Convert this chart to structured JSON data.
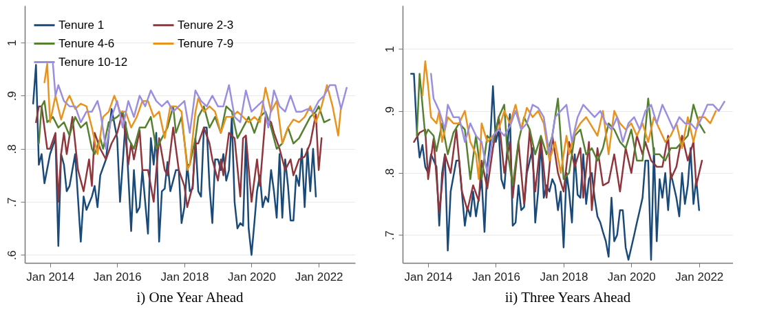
{
  "chart_data": [
    {
      "type": "line",
      "title": "i) One Year Ahead",
      "xlim": [
        "2013-04",
        "2023-02"
      ],
      "xticks": [
        {
          "value": "2014-01",
          "label": "Jan 2014"
        },
        {
          "value": "2016-01",
          "label": "Jan 2016"
        },
        {
          "value": "2018-01",
          "label": "Jan 2018"
        },
        {
          "value": "2020-01",
          "label": "Jan 2020"
        },
        {
          "value": "2022-01",
          "label": "Jan 2022"
        }
      ],
      "ylim": [
        0.585,
        1.07
      ],
      "yticks": [
        {
          "value": 0.6,
          "label": ".6"
        },
        {
          "value": 0.7,
          "label": ".7"
        },
        {
          "value": 0.8,
          "label": ".8"
        },
        {
          "value": 0.9,
          "label": ".9"
        },
        1
      ],
      "grid": "y",
      "legend": "top left",
      "line_style": "solid",
      "marker": "none",
      "series": [
        {
          "name": "Tenure 1",
          "color": "#1a4a7a",
          "x": [
            "2013-07",
            "2013-08",
            "2013-09",
            "2013-10",
            "2013-11",
            "2014-01",
            "2014-03",
            "2014-04",
            "2014-05",
            "2014-06",
            "2014-07",
            "2014-08",
            "2014-10",
            "2014-12",
            "2015-01",
            "2015-02",
            "2015-04",
            "2015-05",
            "2015-06",
            "2015-07",
            "2015-09",
            "2015-11",
            "2016-01",
            "2016-02",
            "2016-04",
            "2016-06",
            "2016-07",
            "2016-08",
            "2016-09",
            "2016-10",
            "2016-12",
            "2017-01",
            "2017-02",
            "2017-03",
            "2017-04",
            "2017-05",
            "2017-06",
            "2017-07",
            "2017-08",
            "2017-09",
            "2017-10",
            "2017-11",
            "2017-12",
            "2018-01",
            "2018-02",
            "2018-03",
            "2018-04",
            "2018-05",
            "2018-06",
            "2018-07",
            "2018-08",
            "2018-09",
            "2018-10",
            "2018-11",
            "2018-12",
            "2019-01",
            "2019-02",
            "2019-03",
            "2019-04",
            "2019-05",
            "2019-06",
            "2019-07",
            "2019-08",
            "2019-09",
            "2019-10",
            "2019-11",
            "2019-12",
            "2020-01",
            "2020-02",
            "2020-03",
            "2020-04",
            "2020-05",
            "2020-06",
            "2020-07",
            "2020-08",
            "2020-09",
            "2020-10",
            "2020-11",
            "2020-12",
            "2021-01",
            "2021-02",
            "2021-03",
            "2021-04",
            "2021-05",
            "2021-06",
            "2021-07",
            "2021-08",
            "2021-09",
            "2021-10",
            "2021-11",
            "2021-12"
          ],
          "values": [
            0.885,
            0.958,
            0.77,
            0.79,
            0.735,
            0.79,
            0.82,
            0.617,
            0.79,
            0.77,
            0.72,
            0.73,
            0.79,
            0.625,
            0.71,
            0.685,
            0.71,
            0.73,
            0.69,
            0.75,
            0.78,
            0.875,
            0.82,
            0.7,
            0.85,
            0.645,
            0.76,
            0.68,
            0.69,
            0.76,
            0.64,
            0.82,
            0.77,
            0.83,
            0.625,
            0.72,
            0.725,
            0.775,
            0.72,
            0.74,
            0.76,
            0.76,
            0.66,
            0.69,
            0.77,
            0.72,
            0.725,
            0.82,
            0.72,
            0.71,
            0.84,
            0.84,
            0.73,
            0.66,
            0.78,
            0.78,
            0.76,
            0.79,
            0.74,
            0.76,
            0.86,
            0.7,
            0.65,
            0.66,
            0.655,
            0.82,
            0.65,
            0.6,
            0.66,
            0.72,
            0.75,
            0.69,
            0.71,
            0.7,
            0.76,
            0.72,
            0.67,
            0.79,
            0.67,
            0.78,
            0.73,
            0.665,
            0.665,
            0.75,
            0.73,
            0.8,
            0.69,
            0.8,
            0.72,
            0.8,
            0.71
          ]
        },
        {
          "name": "Tenure 2-3",
          "color": "#90353b",
          "x": [
            "2013-08",
            "2013-09",
            "2013-10",
            "2013-12",
            "2014-01",
            "2014-03",
            "2014-04",
            "2014-05",
            "2014-06",
            "2014-07",
            "2014-09",
            "2014-11",
            "2015-01",
            "2015-03",
            "2015-04",
            "2015-05",
            "2015-07",
            "2015-09",
            "2015-11",
            "2016-01",
            "2016-03",
            "2016-04",
            "2016-05",
            "2016-06",
            "2016-07",
            "2016-09",
            "2016-10",
            "2016-12",
            "2017-02",
            "2017-04",
            "2017-06",
            "2017-07",
            "2017-09",
            "2017-11",
            "2018-01",
            "2018-02",
            "2018-04",
            "2018-05",
            "2018-06",
            "2018-08",
            "2018-10",
            "2018-11",
            "2019-01",
            "2019-02",
            "2019-03",
            "2019-05",
            "2019-07",
            "2019-09",
            "2019-10",
            "2019-11",
            "2020-01",
            "2020-03",
            "2020-04",
            "2020-06",
            "2020-08",
            "2020-09",
            "2020-11",
            "2021-01",
            "2021-03",
            "2021-04",
            "2021-06",
            "2021-08",
            "2021-10",
            "2021-12",
            "2022-01",
            "2022-02"
          ],
          "values": [
            0.85,
            0.88,
            0.88,
            0.8,
            0.8,
            0.83,
            0.7,
            0.79,
            0.83,
            0.79,
            0.86,
            0.76,
            0.72,
            0.78,
            0.73,
            0.83,
            0.8,
            0.78,
            0.81,
            0.83,
            0.87,
            0.82,
            0.77,
            0.81,
            0.78,
            0.835,
            0.76,
            0.76,
            0.7,
            0.82,
            0.76,
            0.75,
            0.84,
            0.76,
            0.73,
            0.69,
            0.73,
            0.81,
            0.81,
            0.84,
            0.81,
            0.78,
            0.74,
            0.78,
            0.75,
            0.83,
            0.82,
            0.71,
            0.82,
            0.825,
            0.7,
            0.78,
            0.73,
            0.86,
            0.85,
            0.83,
            0.8,
            0.76,
            0.78,
            0.75,
            0.78,
            0.785,
            0.81,
            0.865,
            0.76,
            0.82
          ]
        },
        {
          "name": "Tenure 4-6",
          "color": "#55802f",
          "x": [
            "2013-09",
            "2013-10",
            "2013-11",
            "2013-12",
            "2014-02",
            "2014-04",
            "2014-06",
            "2014-08",
            "2014-10",
            "2014-12",
            "2015-02",
            "2015-04",
            "2015-05",
            "2015-07",
            "2015-08",
            "2015-10",
            "2016-01",
            "2016-03",
            "2016-05",
            "2016-07",
            "2016-09",
            "2016-11",
            "2017-01",
            "2017-03",
            "2017-05",
            "2017-07",
            "2017-09",
            "2017-10",
            "2017-12",
            "2018-02",
            "2018-03",
            "2018-05",
            "2018-06",
            "2018-08",
            "2018-10",
            "2018-12",
            "2019-02",
            "2019-04",
            "2019-06",
            "2019-08",
            "2019-10",
            "2019-12",
            "2020-02",
            "2020-04",
            "2020-06",
            "2020-08",
            "2020-10",
            "2020-12",
            "2021-02",
            "2021-04",
            "2021-06",
            "2021-08",
            "2021-10",
            "2021-12",
            "2022-01",
            "2022-03",
            "2022-05"
          ],
          "values": [
            0.81,
            0.88,
            0.89,
            0.85,
            0.86,
            0.84,
            0.85,
            0.825,
            0.86,
            0.84,
            0.85,
            0.8,
            0.79,
            0.82,
            0.8,
            0.85,
            0.86,
            0.87,
            0.82,
            0.8,
            0.84,
            0.84,
            0.86,
            0.8,
            0.82,
            0.84,
            0.88,
            0.83,
            0.86,
            0.77,
            0.77,
            0.82,
            0.86,
            0.88,
            0.84,
            0.86,
            0.83,
            0.88,
            0.87,
            0.82,
            0.84,
            0.86,
            0.83,
            0.86,
            0.87,
            0.84,
            0.8,
            0.81,
            0.84,
            0.81,
            0.82,
            0.84,
            0.86,
            0.87,
            0.88,
            0.85,
            0.855
          ]
        },
        {
          "name": "Tenure 7-9",
          "color": "#e8931e",
          "x": [
            "2013-11",
            "2013-12",
            "2014-01",
            "2014-03",
            "2014-05",
            "2014-07",
            "2014-08",
            "2014-10",
            "2014-12",
            "2015-02",
            "2015-04",
            "2015-06",
            "2015-08",
            "2015-10",
            "2015-12",
            "2016-02",
            "2016-04",
            "2016-06",
            "2016-08",
            "2016-10",
            "2016-12",
            "2017-02",
            "2017-04",
            "2017-06",
            "2017-08",
            "2017-10",
            "2017-12",
            "2018-02",
            "2018-03",
            "2018-05",
            "2018-06",
            "2018-08",
            "2018-10",
            "2018-12",
            "2019-02",
            "2019-04",
            "2019-06",
            "2019-08",
            "2019-10",
            "2019-12",
            "2020-02",
            "2020-04",
            "2020-06",
            "2020-08",
            "2020-10",
            "2020-12",
            "2021-02",
            "2021-04",
            "2021-06",
            "2021-08",
            "2021-10",
            "2021-12",
            "2022-02",
            "2022-04",
            "2022-06",
            "2022-08",
            "2022-09"
          ],
          "values": [
            0.925,
            0.96,
            0.85,
            0.9,
            0.855,
            0.89,
            0.9,
            0.875,
            0.885,
            0.88,
            0.84,
            0.79,
            0.86,
            0.87,
            0.9,
            0.87,
            0.87,
            0.84,
            0.86,
            0.89,
            0.89,
            0.86,
            0.87,
            0.82,
            0.88,
            0.88,
            0.87,
            0.76,
            0.77,
            0.87,
            0.895,
            0.87,
            0.88,
            0.87,
            0.83,
            0.86,
            0.86,
            0.87,
            0.86,
            0.85,
            0.86,
            0.85,
            0.915,
            0.87,
            0.89,
            0.81,
            0.84,
            0.855,
            0.85,
            0.86,
            0.88,
            0.85,
            0.88,
            0.92,
            0.88,
            0.825,
            0.88
          ]
        },
        {
          "name": "Tenure 10-12",
          "color": "#9b8ee0",
          "x": [
            "2014-02",
            "2014-03",
            "2014-04",
            "2014-06",
            "2014-08",
            "2014-10",
            "2014-12",
            "2015-02",
            "2015-04",
            "2015-06",
            "2015-07",
            "2015-09",
            "2015-11",
            "2016-01",
            "2016-03",
            "2016-05",
            "2016-07",
            "2016-09",
            "2016-11",
            "2017-01",
            "2017-03",
            "2017-05",
            "2017-07",
            "2017-09",
            "2017-11",
            "2018-01",
            "2018-03",
            "2018-05",
            "2018-07",
            "2018-09",
            "2018-11",
            "2019-01",
            "2019-03",
            "2019-05",
            "2019-07",
            "2019-09",
            "2019-11",
            "2020-01",
            "2020-03",
            "2020-05",
            "2020-07",
            "2020-09",
            "2020-11",
            "2021-01",
            "2021-03",
            "2021-05",
            "2021-07",
            "2021-09",
            "2021-11",
            "2022-01",
            "2022-03",
            "2022-05",
            "2022-07",
            "2022-09",
            "2022-11"
          ],
          "values": [
            0.96,
            0.9,
            0.92,
            0.89,
            0.88,
            0.88,
            0.85,
            0.87,
            0.87,
            0.89,
            0.87,
            0.8,
            0.86,
            0.89,
            0.84,
            0.89,
            0.86,
            0.9,
            0.88,
            0.91,
            0.89,
            0.88,
            0.89,
            0.87,
            0.88,
            0.89,
            0.83,
            0.91,
            0.89,
            0.88,
            0.9,
            0.88,
            0.88,
            0.92,
            0.86,
            0.85,
            0.91,
            0.87,
            0.88,
            0.89,
            0.84,
            0.91,
            0.88,
            0.87,
            0.9,
            0.87,
            0.87,
            0.875,
            0.87,
            0.89,
            0.9,
            0.92,
            0.92,
            0.875,
            0.915
          ]
        }
      ]
    },
    {
      "type": "line",
      "title": "ii) Three Years Ahead",
      "xlim": [
        "2013-04",
        "2023-01"
      ],
      "xticks": [
        {
          "value": "2014-01",
          "label": "Jan 2014"
        },
        {
          "value": "2016-01",
          "label": "Jan 2016"
        },
        {
          "value": "2018-01",
          "label": "Jan 2018"
        },
        {
          "value": "2020-01",
          "label": "Jan 2020"
        },
        {
          "value": "2022-01",
          "label": "Jan 2022"
        }
      ],
      "ylim": [
        0.655,
        1.07
      ],
      "yticks": [
        {
          "value": 0.7,
          "label": ".7"
        },
        {
          "value": 0.8,
          "label": ".8"
        },
        {
          "value": 0.9,
          "label": ".9"
        },
        1
      ],
      "grid": "y",
      "legend": "top left",
      "line_style": "solid",
      "marker": "none",
      "series": [
        {
          "name": "Tenure 1",
          "color": "#1a4a7a",
          "x": [
            "2013-07",
            "2013-08",
            "2013-09",
            "2013-10",
            "2013-11",
            "2013-12",
            "2014-01",
            "2014-02",
            "2014-04",
            "2014-05",
            "2014-06",
            "2014-07",
            "2014-08",
            "2014-09",
            "2014-11",
            "2014-12",
            "2015-02",
            "2015-03",
            "2015-04",
            "2015-05",
            "2015-06",
            "2015-08",
            "2015-09",
            "2015-10",
            "2015-11",
            "2015-12",
            "2016-01",
            "2016-02",
            "2016-03",
            "2016-04",
            "2016-06",
            "2016-07",
            "2016-08",
            "2016-09",
            "2016-10",
            "2016-11",
            "2016-12",
            "2017-02",
            "2017-03",
            "2017-04",
            "2017-05",
            "2017-06",
            "2017-07",
            "2017-08",
            "2017-09",
            "2017-10",
            "2017-11",
            "2017-12",
            "2018-01",
            "2018-02",
            "2018-03",
            "2018-04",
            "2018-05",
            "2018-06",
            "2018-07",
            "2018-08",
            "2018-09",
            "2018-10",
            "2018-11",
            "2018-12",
            "2019-01",
            "2019-02",
            "2019-03",
            "2019-04",
            "2019-05",
            "2019-06",
            "2019-07",
            "2019-08",
            "2019-09",
            "2019-10",
            "2019-11",
            "2019-12",
            "2020-01",
            "2020-02",
            "2020-03",
            "2020-04",
            "2020-05",
            "2020-06",
            "2020-07",
            "2020-08",
            "2020-09",
            "2020-10",
            "2020-11",
            "2020-12",
            "2021-01",
            "2021-02",
            "2021-03",
            "2021-04",
            "2021-05",
            "2021-06",
            "2021-07",
            "2021-08",
            "2021-09",
            "2021-10",
            "2021-11",
            "2021-12",
            "2022-01"
          ],
          "values": [
            0.96,
            0.96,
            0.87,
            0.825,
            0.845,
            0.81,
            0.8,
            0.83,
            0.81,
            0.715,
            0.8,
            0.83,
            0.675,
            0.77,
            0.82,
            0.82,
            0.715,
            0.745,
            0.73,
            0.77,
            0.73,
            0.79,
            0.705,
            0.81,
            0.85,
            0.94,
            0.85,
            0.87,
            0.79,
            0.775,
            0.895,
            0.715,
            0.72,
            0.78,
            0.74,
            0.745,
            0.8,
            0.84,
            0.72,
            0.77,
            0.85,
            0.76,
            0.78,
            0.77,
            0.79,
            0.78,
            0.74,
            0.77,
            0.68,
            0.8,
            0.77,
            0.72,
            0.83,
            0.765,
            0.76,
            0.83,
            0.75,
            0.79,
            0.8,
            0.76,
            0.73,
            0.72,
            0.705,
            0.69,
            0.665,
            0.76,
            0.69,
            0.7,
            0.74,
            0.74,
            0.68,
            0.66,
            0.68,
            0.7,
            0.72,
            0.74,
            0.76,
            0.82,
            0.82,
            0.66,
            0.84,
            0.69,
            0.79,
            0.76,
            0.8,
            0.74,
            0.8,
            0.78,
            0.76,
            0.73,
            0.8,
            0.75,
            0.78,
            0.84,
            0.75,
            0.79,
            0.74
          ]
        },
        {
          "name": "Tenure 2-3",
          "color": "#90353b",
          "x": [
            "2013-08",
            "2013-10",
            "2013-12",
            "2014-01",
            "2014-03",
            "2014-05",
            "2014-07",
            "2014-09",
            "2014-11",
            "2015-01",
            "2015-03",
            "2015-05",
            "2015-07",
            "2015-08",
            "2015-10",
            "2015-12",
            "2016-02",
            "2016-04",
            "2016-06",
            "2016-07",
            "2016-09",
            "2016-11",
            "2017-01",
            "2017-03",
            "2017-05",
            "2017-07",
            "2017-09",
            "2017-11",
            "2018-01",
            "2018-03",
            "2018-05",
            "2018-07",
            "2018-08",
            "2018-10",
            "2018-11",
            "2019-01",
            "2019-03",
            "2019-05",
            "2019-07",
            "2019-09",
            "2019-11",
            "2020-01",
            "2020-03",
            "2020-05",
            "2020-06",
            "2020-08",
            "2020-10",
            "2020-12",
            "2021-02",
            "2021-03",
            "2021-05",
            "2021-07",
            "2021-09",
            "2021-11",
            "2021-12",
            "2022-02"
          ],
          "values": [
            0.85,
            0.865,
            0.87,
            0.79,
            0.855,
            0.735,
            0.83,
            0.8,
            0.87,
            0.77,
            0.74,
            0.78,
            0.755,
            0.82,
            0.775,
            0.84,
            0.89,
            0.8,
            0.85,
            0.76,
            0.85,
            0.75,
            0.87,
            0.77,
            0.855,
            0.76,
            0.86,
            0.8,
            0.77,
            0.85,
            0.81,
            0.84,
            0.76,
            0.85,
            0.74,
            0.84,
            0.78,
            0.785,
            0.83,
            0.77,
            0.84,
            0.8,
            0.86,
            0.83,
            0.85,
            0.82,
            0.81,
            0.81,
            0.86,
            0.79,
            0.81,
            0.86,
            0.82,
            0.85,
            0.78,
            0.82
          ]
        },
        {
          "name": "Tenure 4-6",
          "color": "#55802f",
          "x": [
            "2013-09",
            "2013-10",
            "2013-12",
            "2014-01",
            "2014-03",
            "2014-04",
            "2014-06",
            "2014-08",
            "2014-10",
            "2014-12",
            "2015-02",
            "2015-04",
            "2015-06",
            "2015-08",
            "2015-10",
            "2015-12",
            "2016-02",
            "2016-04",
            "2016-05",
            "2016-07",
            "2016-09",
            "2016-11",
            "2017-01",
            "2017-03",
            "2017-05",
            "2017-07",
            "2017-09",
            "2017-11",
            "2018-01",
            "2018-03",
            "2018-05",
            "2018-07",
            "2018-09",
            "2018-11",
            "2019-01",
            "2019-03",
            "2019-05",
            "2019-07",
            "2019-09",
            "2019-11",
            "2020-01",
            "2020-03",
            "2020-05",
            "2020-07",
            "2020-09",
            "2020-11",
            "2021-01",
            "2021-03",
            "2021-05",
            "2021-07",
            "2021-09",
            "2021-11",
            "2022-01",
            "2022-03"
          ],
          "values": [
            0.86,
            0.96,
            0.86,
            0.87,
            0.86,
            0.835,
            0.88,
            0.83,
            0.865,
            0.88,
            0.87,
            0.79,
            0.86,
            0.79,
            0.86,
            0.85,
            0.89,
            0.91,
            0.84,
            0.78,
            0.85,
            0.89,
            0.87,
            0.83,
            0.86,
            0.83,
            0.86,
            0.92,
            0.79,
            0.8,
            0.86,
            0.87,
            0.83,
            0.84,
            0.82,
            0.84,
            0.88,
            0.87,
            0.85,
            0.84,
            0.87,
            0.82,
            0.82,
            0.92,
            0.83,
            0.83,
            0.82,
            0.84,
            0.84,
            0.85,
            0.86,
            0.91,
            0.88,
            0.865
          ]
        },
        {
          "name": "Tenure 7-9",
          "color": "#e8931e",
          "x": [
            "2013-11",
            "2013-12",
            "2014-01",
            "2014-02",
            "2014-04",
            "2014-05",
            "2014-06",
            "2014-08",
            "2014-10",
            "2014-12",
            "2015-02",
            "2015-04",
            "2015-06",
            "2015-07",
            "2015-08",
            "2015-10",
            "2015-12",
            "2016-02",
            "2016-04",
            "2016-06",
            "2016-08",
            "2016-10",
            "2016-12",
            "2017-02",
            "2017-04",
            "2017-06",
            "2017-08",
            "2017-10",
            "2017-12",
            "2018-02",
            "2018-03",
            "2018-05",
            "2018-07",
            "2018-09",
            "2018-11",
            "2019-01",
            "2019-03",
            "2019-05",
            "2019-07",
            "2019-09",
            "2019-11",
            "2020-01",
            "2020-03",
            "2020-05",
            "2020-07",
            "2020-09",
            "2020-11",
            "2021-01",
            "2021-03",
            "2021-05",
            "2021-07",
            "2021-09",
            "2021-11",
            "2022-01",
            "2022-03",
            "2022-05",
            "2022-07"
          ],
          "values": [
            0.925,
            0.98,
            0.94,
            0.89,
            0.88,
            0.9,
            0.85,
            0.89,
            0.88,
            0.88,
            0.9,
            0.85,
            0.83,
            0.79,
            0.88,
            0.85,
            0.86,
            0.87,
            0.9,
            0.88,
            0.91,
            0.87,
            0.905,
            0.89,
            0.9,
            0.88,
            0.82,
            0.85,
            0.8,
            0.86,
            0.83,
            0.865,
            0.88,
            0.89,
            0.875,
            0.86,
            0.9,
            0.83,
            0.9,
            0.88,
            0.87,
            0.88,
            0.86,
            0.88,
            0.85,
            0.89,
            0.87,
            0.85,
            0.86,
            0.88,
            0.84,
            0.89,
            0.85,
            0.89,
            0.89,
            0.88,
            0.9
          ]
        },
        {
          "name": "Tenure 10-12",
          "color": "#9b8ee0",
          "x": [
            "2014-02",
            "2014-03",
            "2014-05",
            "2014-07",
            "2014-08",
            "2014-10",
            "2014-12",
            "2015-02",
            "2015-04",
            "2015-06",
            "2015-08",
            "2015-10",
            "2015-12",
            "2016-02",
            "2016-04",
            "2016-06",
            "2016-08",
            "2016-10",
            "2016-12",
            "2017-02",
            "2017-04",
            "2017-06",
            "2017-08",
            "2017-10",
            "2017-12",
            "2018-02",
            "2018-04",
            "2018-06",
            "2018-08",
            "2018-10",
            "2018-12",
            "2019-02",
            "2019-04",
            "2019-06",
            "2019-08",
            "2019-10",
            "2019-12",
            "2020-02",
            "2020-04",
            "2020-06",
            "2020-08",
            "2020-10",
            "2020-12",
            "2021-02",
            "2021-04",
            "2021-06",
            "2021-08",
            "2021-10",
            "2021-12",
            "2022-02",
            "2022-04",
            "2022-06",
            "2022-08",
            "2022-10"
          ],
          "values": [
            0.96,
            0.92,
            0.9,
            0.87,
            0.91,
            0.89,
            0.89,
            0.85,
            0.88,
            0.86,
            0.85,
            0.8,
            0.86,
            0.87,
            0.86,
            0.875,
            0.9,
            0.87,
            0.88,
            0.91,
            0.905,
            0.89,
            0.83,
            0.89,
            0.9,
            0.91,
            0.85,
            0.89,
            0.91,
            0.9,
            0.89,
            0.9,
            0.88,
            0.87,
            0.89,
            0.85,
            0.88,
            0.89,
            0.87,
            0.9,
            0.91,
            0.88,
            0.91,
            0.89,
            0.87,
            0.89,
            0.88,
            0.88,
            0.87,
            0.89,
            0.91,
            0.91,
            0.9,
            0.915
          ]
        }
      ]
    }
  ]
}
